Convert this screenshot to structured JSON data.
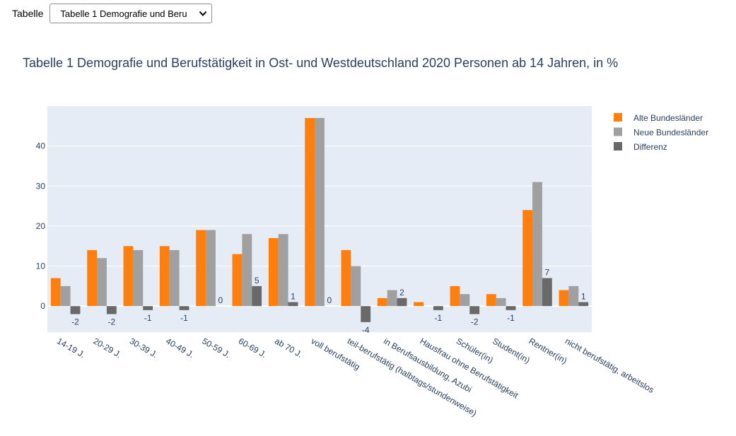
{
  "controls": {
    "table_label": "Tabelle",
    "table_select_value": "Tabelle 1 Demografie und Beru"
  },
  "colors": {
    "alte": "#ff7f0e",
    "neue": "#a0a0a0",
    "diff": "#696969",
    "plot_bg": "#e5ecf6",
    "text": "#2a3f5f"
  },
  "chart_data": {
    "type": "bar",
    "title": "Tabelle 1 Demografie und Berufstätigkeit in Ost- und Westdeutschland 2020 Personen ab 14 Jahren, in %",
    "xlabel": "",
    "ylabel": "",
    "ylim": [
      -6.5,
      50
    ],
    "yticks": [
      0,
      10,
      20,
      30,
      40
    ],
    "grid": true,
    "legend_position": "top-right",
    "categories": [
      "14-19 J.",
      "20-29 J.",
      "30-39 J.",
      "40-49 J.",
      "50-59 J.",
      "60-69 J.",
      "ab 70 J.",
      "voll berufstätig",
      "teil-berufstätig (halbtags/stundenweise)",
      "in Berufsausbildung, Azubi",
      "Hausfrau ohne Berufstätigkeit",
      "Schüler(in)",
      "Student(in)",
      "Rentner(in)",
      "nicht berufstätig, arbeitslos"
    ],
    "series": [
      {
        "name": "Alte Bundesländer",
        "values": [
          7,
          14,
          15,
          15,
          19,
          13,
          17,
          47,
          14,
          2,
          1,
          5,
          3,
          24,
          4
        ]
      },
      {
        "name": "Neue Bundesländer",
        "values": [
          5,
          12,
          14,
          14,
          19,
          18,
          18,
          47,
          10,
          4,
          0,
          3,
          2,
          31,
          5
        ]
      },
      {
        "name": "Differenz",
        "values": [
          -2,
          -2,
          -1,
          -1,
          0,
          5,
          1,
          0,
          -4,
          2,
          -1,
          -2,
          -1,
          7,
          1
        ]
      }
    ],
    "data_labels_series": "Differenz"
  }
}
